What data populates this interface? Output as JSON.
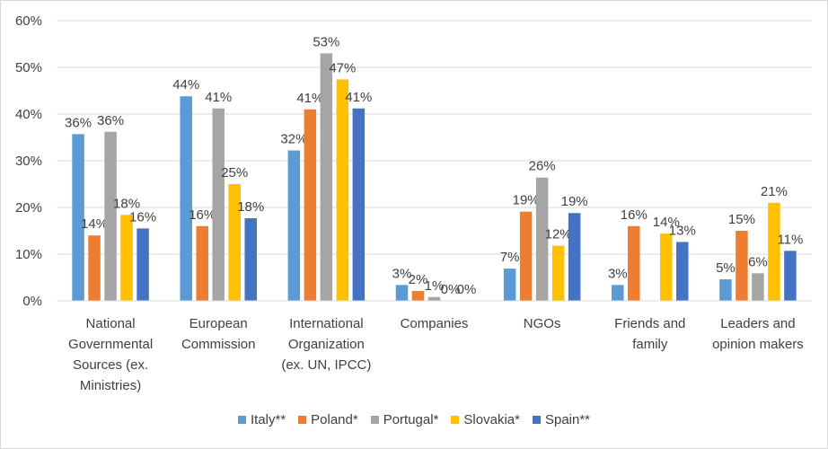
{
  "chart_data": {
    "type": "bar",
    "categories": [
      [
        "National",
        "Governmental",
        "Sources (ex.",
        "Ministries)"
      ],
      [
        "European",
        "Commission"
      ],
      [
        "International",
        "Organization",
        "(ex. UN, IPCC)"
      ],
      [
        "Companies"
      ],
      [
        "NGOs"
      ],
      [
        "Friends and",
        "family"
      ],
      [
        "Leaders and",
        "opinion makers"
      ]
    ],
    "series": [
      {
        "name": "Italy**",
        "color": "#5B9BD5",
        "values": [
          35.7,
          43.8,
          32.2,
          3.4,
          6.9,
          3.4,
          4.6
        ],
        "labels": [
          "36%",
          "44%",
          "32%",
          "3%",
          "7%",
          "3%",
          "5%"
        ]
      },
      {
        "name": "Poland*",
        "color": "#ED7D31",
        "values": [
          14.0,
          16.0,
          41.0,
          2.1,
          19.1,
          16.0,
          15.0
        ],
        "labels": [
          "14%",
          "16%",
          "41%",
          "2%",
          "19%",
          "16%",
          "15%"
        ]
      },
      {
        "name": "Portugal*",
        "color": "#A5A5A5",
        "values": [
          36.2,
          41.2,
          53.0,
          0.8,
          26.4,
          0.0,
          5.9
        ],
        "labels": [
          "36%",
          "41%",
          "53%",
          "1%",
          "26%",
          "",
          "6%"
        ]
      },
      {
        "name": "Slovakia*",
        "color": "#FFC000",
        "values": [
          18.4,
          25.0,
          47.4,
          0.0,
          11.8,
          14.4,
          21.0
        ],
        "labels": [
          "18%",
          "25%",
          "47%",
          "0%",
          "12%",
          "14%",
          "21%"
        ]
      },
      {
        "name": "Spain**",
        "color": "#4472C4",
        "values": [
          15.5,
          17.7,
          41.2,
          0.0,
          18.8,
          12.6,
          10.7
        ],
        "labels": [
          "16%",
          "18%",
          "41%",
          "0%",
          "19%",
          "13%",
          "11%"
        ]
      }
    ],
    "yticks": [
      "0%",
      "10%",
      "20%",
      "30%",
      "40%",
      "50%",
      "60%"
    ],
    "ylim": [
      0,
      60
    ],
    "grid": true,
    "legend": "bottom",
    "title": "",
    "xlabel": "",
    "ylabel": ""
  }
}
